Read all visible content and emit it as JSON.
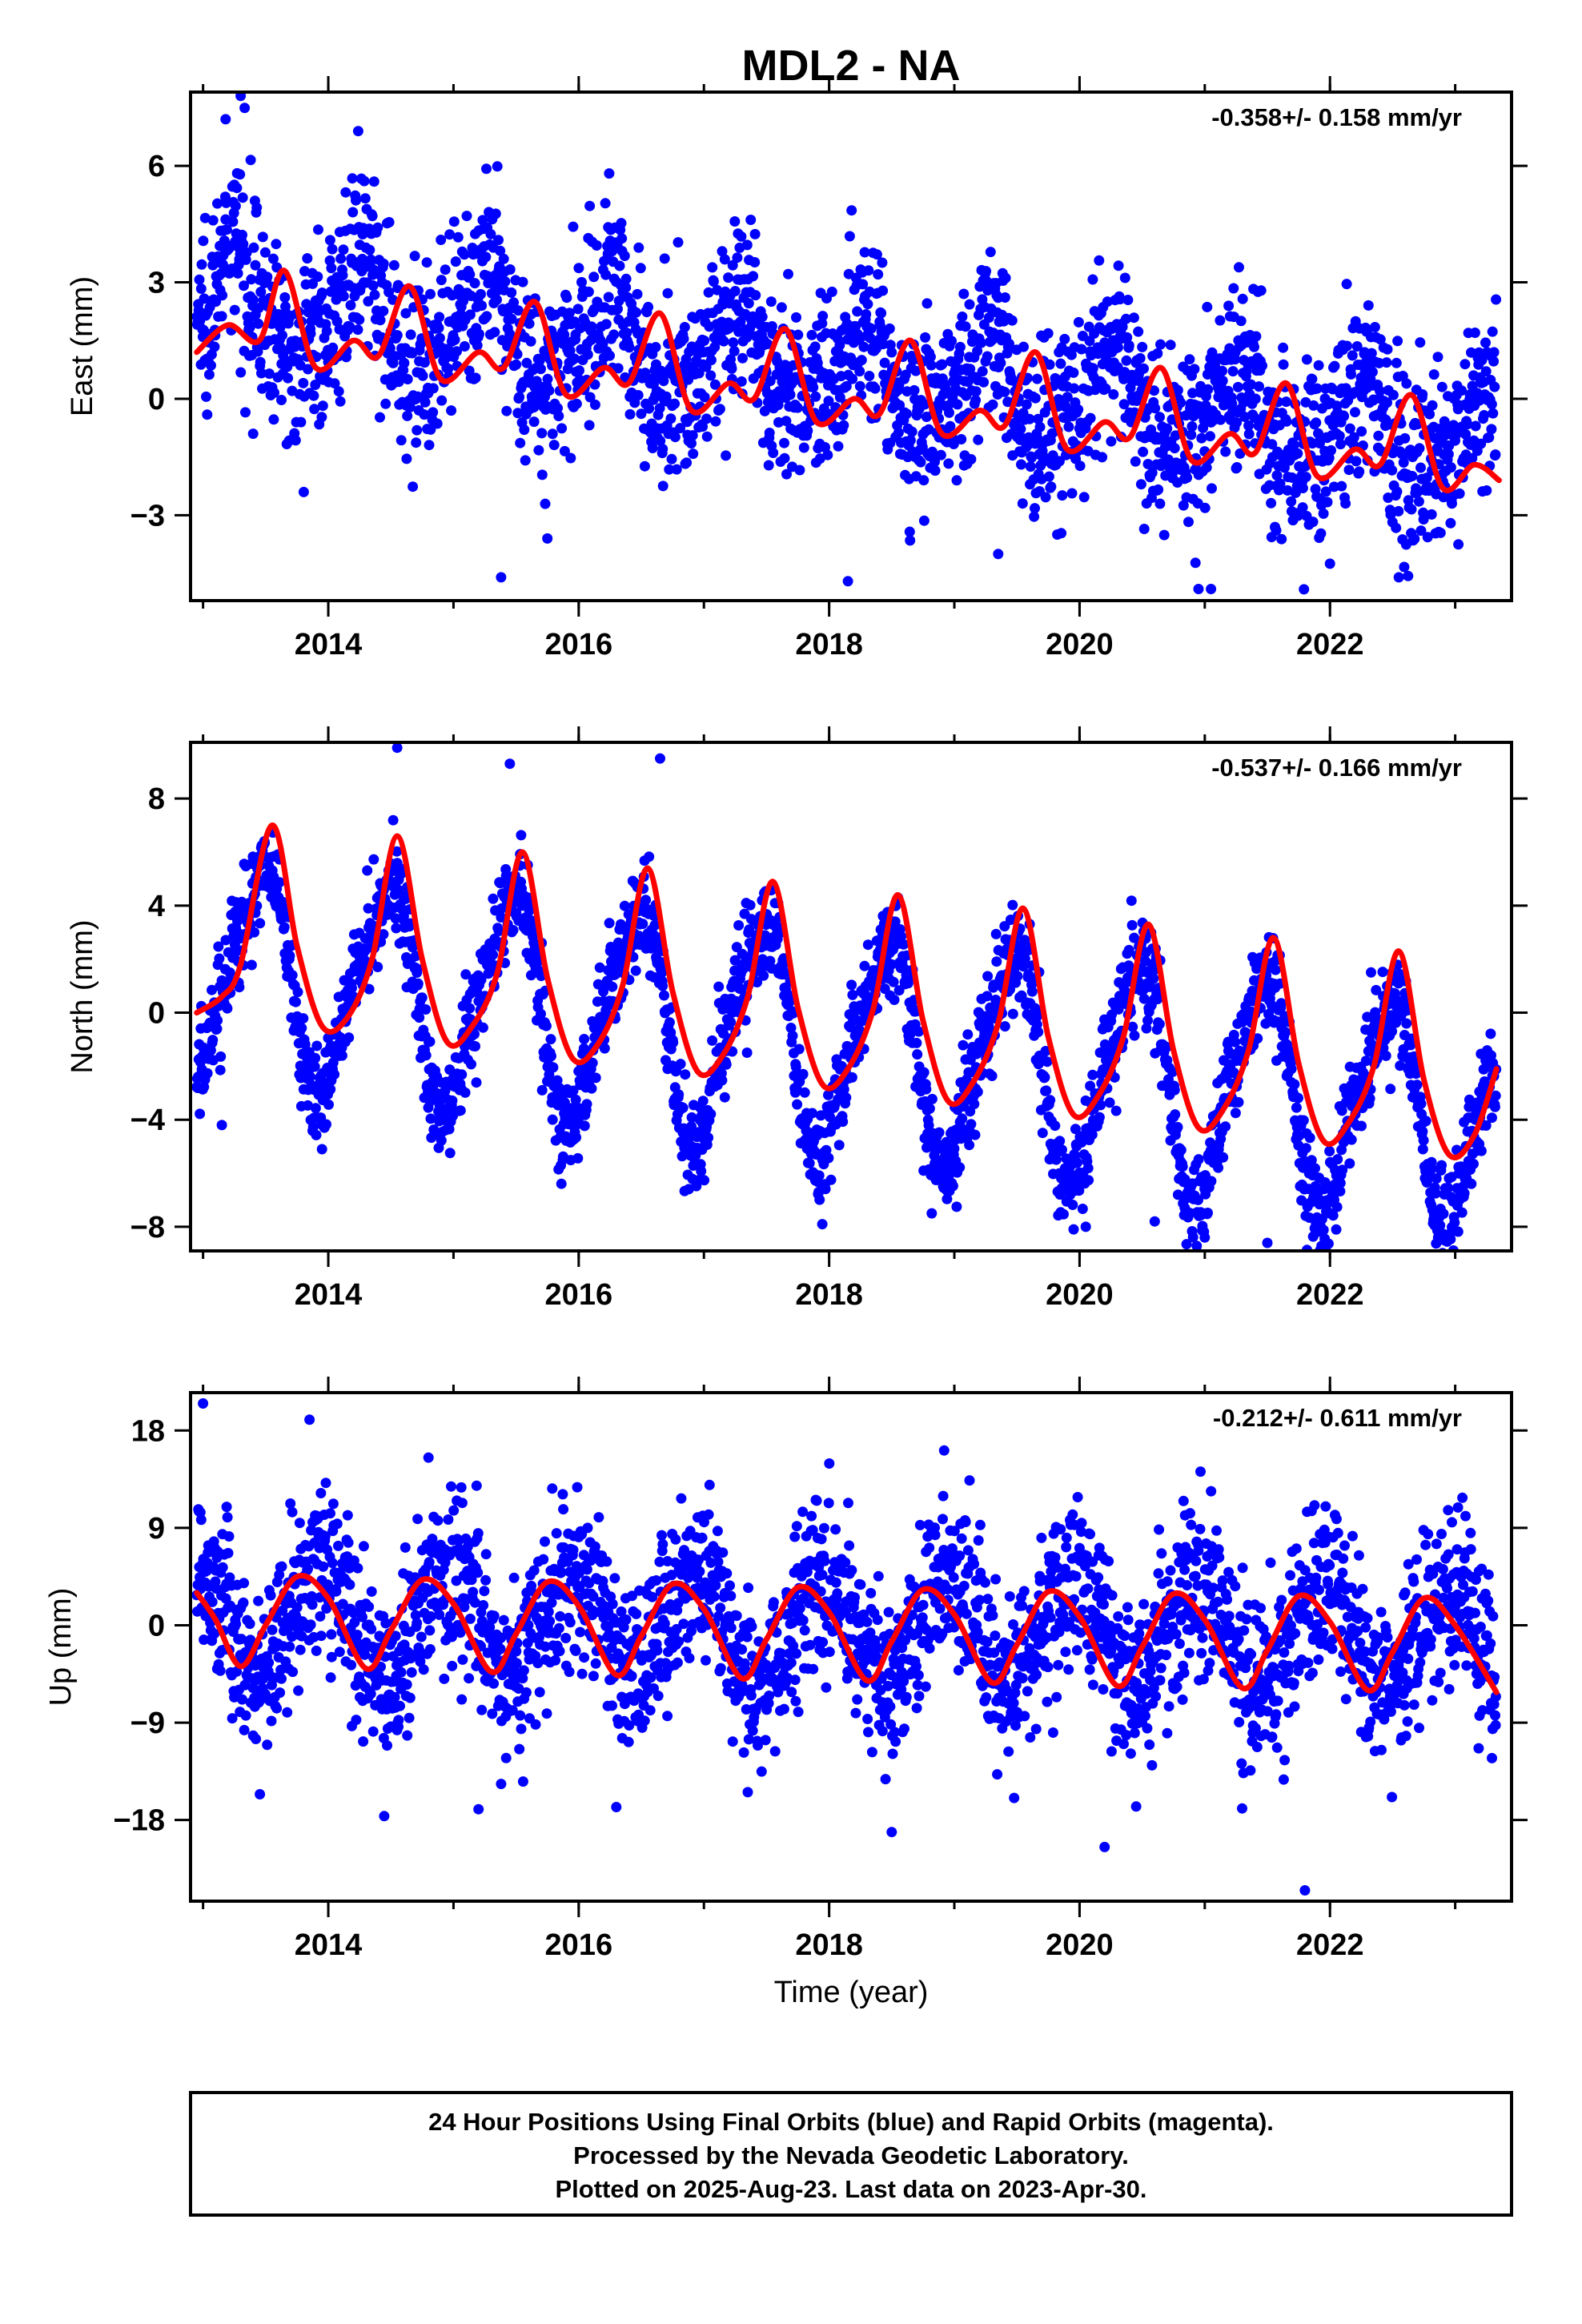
{
  "title": "MDL2 - NA",
  "x_axis_label": "Time (year)",
  "caption": [
    "24 Hour Positions Using Final Orbits (blue) and Rapid Orbits (magenta).",
    "Processed by the Nevada Geodetic Laboratory.",
    "Plotted on 2025-Aug-23. Last data on 2023-Apr-30."
  ],
  "colors": {
    "points": "#0000ff",
    "model": "#ff0000",
    "frame": "#000000"
  },
  "chart_data": [
    {
      "type": "scatter",
      "ylabel": "East (mm)",
      "rate_label": "-0.358+/- 0.158 mm/yr",
      "xlim": [
        2012.9,
        2023.45
      ],
      "ylim": [
        -5.2,
        7.9
      ],
      "xticks": [
        2014,
        2016,
        2018,
        2020,
        2022
      ],
      "xtick_labels": [
        "2014",
        "2016",
        "2018",
        "2020",
        "2022"
      ],
      "yticks": [
        -3,
        0,
        3,
        6
      ],
      "ytick_labels": [
        "−3",
        "0",
        "3",
        "6"
      ],
      "model": {
        "name": "model",
        "x": [
          2012.95,
          2013.2,
          2013.45,
          2013.65,
          2013.9,
          2014.2,
          2014.4,
          2014.65,
          2014.9,
          2015.2,
          2015.4,
          2015.65,
          2015.9,
          2016.2,
          2016.4,
          2016.65,
          2016.9,
          2017.2,
          2017.4,
          2017.65,
          2017.9,
          2018.2,
          2018.4,
          2018.65,
          2018.9,
          2019.2,
          2019.4,
          2019.65,
          2019.9,
          2020.2,
          2020.4,
          2020.65,
          2020.9,
          2021.2,
          2021.4,
          2021.65,
          2021.9,
          2022.2,
          2022.4,
          2022.65,
          2022.9,
          2023.15,
          2023.35
        ],
        "y": [
          1.2,
          1.9,
          1.5,
          3.3,
          0.8,
          1.5,
          1.1,
          2.9,
          0.5,
          1.2,
          0.8,
          2.5,
          0.1,
          0.8,
          0.4,
          2.2,
          -0.3,
          0.4,
          0.0,
          1.8,
          -0.6,
          0.0,
          -0.4,
          1.5,
          -0.9,
          -0.3,
          -0.7,
          1.2,
          -1.3,
          -0.6,
          -1.0,
          0.8,
          -1.6,
          -0.9,
          -1.4,
          0.4,
          -2.0,
          -1.3,
          -1.7,
          0.1,
          -2.3,
          -1.7,
          -2.1
        ]
      },
      "scatter_model": {
        "start": 2012.95,
        "end": 2023.33,
        "count": 2600,
        "offset": 2.55,
        "trend": -0.358,
        "annual_amp": 1.15,
        "annual_phase": 1.25,
        "semiannual_amp": 0.3,
        "semiannual_phase": 0.6,
        "noise_sd": 1.15,
        "outliers": [
          [
            2013.3,
            7.8
          ],
          [
            2013.18,
            7.2
          ],
          [
            2015.38,
            -4.6
          ],
          [
            2018.15,
            -4.7
          ],
          [
            2020.95,
            -4.9
          ],
          [
            2021.05,
            -4.9
          ],
          [
            2022.55,
            -4.6
          ],
          [
            2019.35,
            -4.0
          ],
          [
            2013.4,
            -0.9
          ],
          [
            2015.75,
            -3.6
          ]
        ]
      }
    },
    {
      "type": "scatter",
      "ylabel": "North (mm)",
      "rate_label": "-0.537+/- 0.166 mm/yr",
      "xlim": [
        2012.9,
        2023.45
      ],
      "ylim": [
        -8.9,
        10.1
      ],
      "xticks": [
        2014,
        2016,
        2018,
        2020,
        2022
      ],
      "xtick_labels": [
        "2014",
        "2016",
        "2018",
        "2020",
        "2022"
      ],
      "yticks": [
        -8,
        -4,
        0,
        4,
        8
      ],
      "ytick_labels": [
        "−8",
        "−4",
        "0",
        "4",
        "8"
      ],
      "model": {
        "name": "model",
        "x": [
          2012.95,
          2013.15,
          2013.3,
          2013.55,
          2013.75,
          2013.95,
          2014.15,
          2014.35,
          2014.55,
          2014.75,
          2014.95,
          2015.15,
          2015.35,
          2015.55,
          2015.75,
          2015.95,
          2016.15,
          2016.35,
          2016.55,
          2016.75,
          2016.95,
          2017.15,
          2017.35,
          2017.55,
          2017.75,
          2017.95,
          2018.15,
          2018.35,
          2018.55,
          2018.75,
          2018.95,
          2019.15,
          2019.35,
          2019.55,
          2019.75,
          2019.95,
          2020.15,
          2020.35,
          2020.55,
          2020.75,
          2020.95,
          2021.15,
          2021.35,
          2021.55,
          2021.75,
          2021.95,
          2022.15,
          2022.35,
          2022.55,
          2022.75,
          2022.95,
          2023.15,
          2023.33
        ],
        "y": [
          0.0,
          0.6,
          1.8,
          7.0,
          2.5,
          -0.5,
          -0.2,
          2.0,
          6.6,
          2.0,
          -1.1,
          -0.5,
          1.5,
          6.0,
          1.3,
          -1.7,
          -1.2,
          1.0,
          5.4,
          0.8,
          -2.2,
          -1.6,
          0.6,
          4.9,
          0.2,
          -2.7,
          -2.1,
          0.1,
          4.4,
          -0.3,
          -3.3,
          -2.6,
          -0.4,
          3.9,
          -0.9,
          -3.8,
          -3.1,
          -0.9,
          3.3,
          -1.4,
          -4.3,
          -3.6,
          -1.4,
          2.8,
          -1.9,
          -4.8,
          -4.1,
          -2.0,
          2.3,
          -2.5,
          -5.3,
          -4.6,
          -2.1
        ]
      },
      "scatter_model": {
        "start": 2012.95,
        "end": 2023.33,
        "count": 2600,
        "offset": 1.6,
        "trend": -0.537,
        "annual_amp": 4.0,
        "annual_phase": 0.45,
        "semiannual_amp": 0.8,
        "semiannual_phase": 0.2,
        "noise_sd": 0.95,
        "outliers": [
          [
            2014.55,
            9.9
          ],
          [
            2016.65,
            9.5
          ],
          [
            2015.45,
            9.3
          ],
          [
            2013.15,
            -4.2
          ],
          [
            2013.95,
            -5.1
          ],
          [
            2021.0,
            -8.4
          ],
          [
            2021.5,
            -8.6
          ],
          [
            2022.05,
            -8.1
          ],
          [
            2020.05,
            -8.0
          ],
          [
            2020.6,
            -7.8
          ]
        ]
      }
    },
    {
      "type": "scatter",
      "ylabel": "Up (mm)",
      "rate_label": "-0.212+/- 0.611 mm/yr",
      "xlim": [
        2012.9,
        2023.45
      ],
      "ylim": [
        -25.5,
        21.5
      ],
      "xticks": [
        2014,
        2016,
        2018,
        2020,
        2022
      ],
      "xtick_labels": [
        "2014",
        "2016",
        "2018",
        "2020",
        "2022"
      ],
      "yticks": [
        -18,
        -9,
        0,
        9,
        18
      ],
      "ytick_labels": [
        "−18",
        "−9",
        "0",
        "9",
        "18"
      ],
      "model": {
        "name": "model",
        "x": [
          2012.95,
          2013.1,
          2013.3,
          2013.5,
          2013.75,
          2014.0,
          2014.3,
          2014.5,
          2014.75,
          2015.0,
          2015.3,
          2015.5,
          2015.75,
          2016.0,
          2016.3,
          2016.5,
          2016.75,
          2017.0,
          2017.3,
          2017.5,
          2017.75,
          2018.0,
          2018.3,
          2018.5,
          2018.75,
          2019.0,
          2019.3,
          2019.5,
          2019.75,
          2020.0,
          2020.3,
          2020.5,
          2020.75,
          2021.0,
          2021.3,
          2021.5,
          2021.75,
          2022.0,
          2022.3,
          2022.5,
          2022.75,
          2023.0,
          2023.33
        ],
        "y": [
          3.0,
          0.5,
          -3.8,
          0.0,
          4.5,
          2.5,
          -4.0,
          -0.5,
          4.2,
          2.0,
          -4.3,
          -0.8,
          4.0,
          1.8,
          -4.6,
          -1.0,
          3.8,
          1.5,
          -4.9,
          -1.3,
          3.5,
          1.2,
          -5.1,
          -1.5,
          3.3,
          1.0,
          -5.3,
          -1.8,
          3.1,
          0.8,
          -5.6,
          -2.0,
          2.9,
          0.5,
          -5.8,
          -2.3,
          2.7,
          0.3,
          -6.0,
          -2.5,
          2.5,
          0.0,
          -6.2
        ]
      },
      "scatter_model": {
        "start": 2012.95,
        "end": 2023.33,
        "count": 2600,
        "offset": 0.8,
        "trend": -0.212,
        "annual_amp": 4.8,
        "annual_phase": 0.95,
        "semiannual_amp": 0.5,
        "semiannual_phase": 0.3,
        "noise_sd": 3.9,
        "outliers": [
          [
            2013.0,
            20.5
          ],
          [
            2013.85,
            19.0
          ],
          [
            2021.8,
            -24.5
          ],
          [
            2020.2,
            -20.5
          ],
          [
            2015.2,
            -17.0
          ],
          [
            2016.3,
            -16.8
          ],
          [
            2013.4,
            -10.2
          ],
          [
            2014.8,
            15.5
          ]
        ]
      }
    }
  ]
}
